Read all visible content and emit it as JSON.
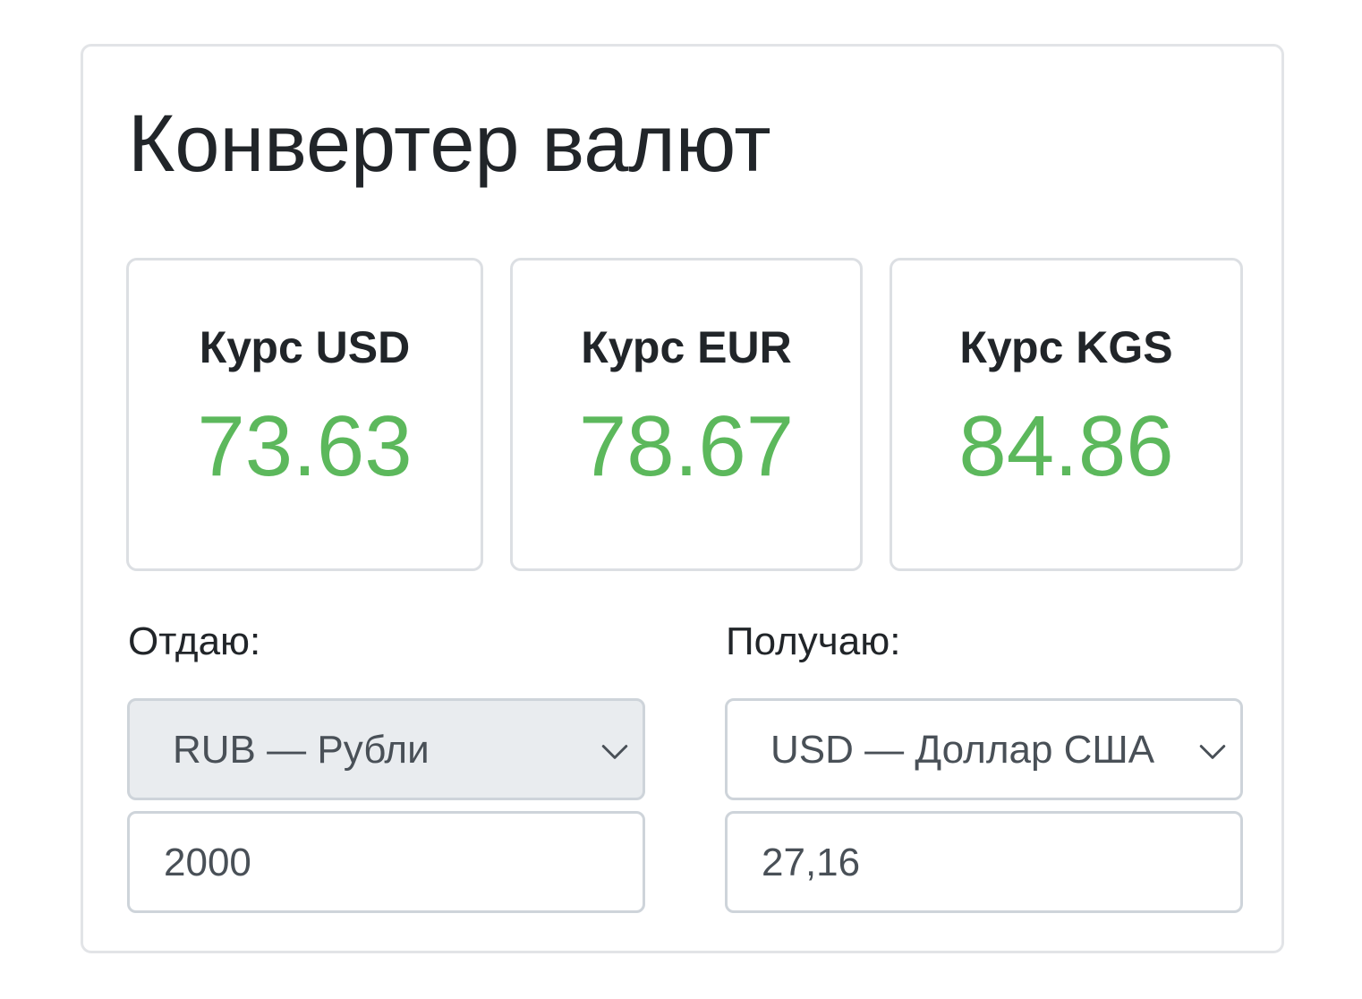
{
  "title": "Конвертер валют",
  "rates": [
    {
      "label": "Курс USD",
      "value": "73.63"
    },
    {
      "label": "Курс EUR",
      "value": "78.67"
    },
    {
      "label": "Курс KGS",
      "value": "84.86"
    }
  ],
  "give": {
    "label": "Отдаю:",
    "currency": "RUB — Рубли",
    "amount": "2000"
  },
  "get": {
    "label": "Получаю:",
    "currency": "USD — Доллар США",
    "amount": "27,16"
  },
  "colors": {
    "rate_value": "#5cb85c",
    "disabled_select": "#e9ecef"
  },
  "icons": {
    "select_arrow": "chevron-down-icon"
  }
}
